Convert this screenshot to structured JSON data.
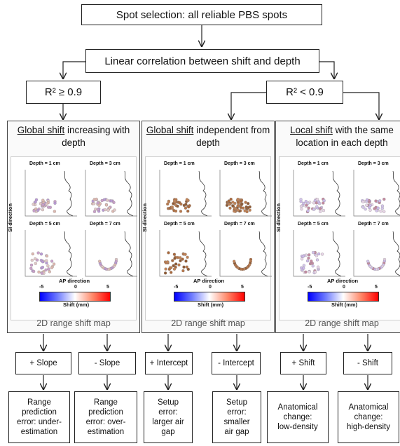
{
  "top": {
    "title": "Spot selection: all reliable PBS spots",
    "correlation": "Linear correlation between shift and depth",
    "left_condition": "R² ≥ 0.9",
    "right_condition": "R² < 0.9"
  },
  "panels": [
    {
      "title_underlined": "Global shift",
      "title_rest": " increasing with depth",
      "caption": "2D range shift map",
      "depths": [
        "Depth = 1 cm",
        "Depth = 3 cm",
        "Depth = 5 cm",
        "Depth = 7 cm"
      ],
      "ylabel": "SI direction",
      "xlabel": "AP direction",
      "colorbar_label": "Shift (mm)",
      "ticks": [
        "-5",
        "0",
        "5"
      ]
    },
    {
      "title_underlined": "Global shift",
      "title_rest": " independent from depth",
      "caption": "2D range shift map",
      "depths": [
        "Depth = 1 cm",
        "Depth = 3 cm",
        "Depth = 5 cm",
        "Depth = 7 cm"
      ],
      "ylabel": "SI direction",
      "xlabel": "AP direction",
      "colorbar_label": "Shift (mm)",
      "ticks": [
        "-5",
        "0",
        "5"
      ]
    },
    {
      "title_underlined": "Local shift",
      "title_rest": " with the same location in each depth",
      "caption": "2D range shift map",
      "depths": [
        "Depth = 1 cm",
        "Depth = 3 cm",
        "Depth = 5 cm",
        "Depth = 7 cm"
      ],
      "ylabel": "SI direction",
      "xlabel": "AP direction",
      "colorbar_label": "Shift (mm)",
      "ticks": [
        "-5",
        "0",
        "5"
      ]
    }
  ],
  "branches": [
    "+ Slope",
    "- Slope",
    "+ Intercept",
    "- Intercept",
    "+ Shift",
    "- Shift"
  ],
  "outcomes": [
    [
      "Range",
      "prediction",
      "error: under-",
      "estimation"
    ],
    [
      "Range",
      "prediction",
      "error: over-",
      "estimation"
    ],
    [
      "Setup",
      "error:",
      "larger air",
      "gap"
    ],
    [
      "Setup",
      "error:",
      "smaller",
      "air gap"
    ],
    [
      "Anatomical",
      "change:",
      "low-density"
    ],
    [
      "Anatomical",
      "change:",
      "high-density"
    ]
  ]
}
